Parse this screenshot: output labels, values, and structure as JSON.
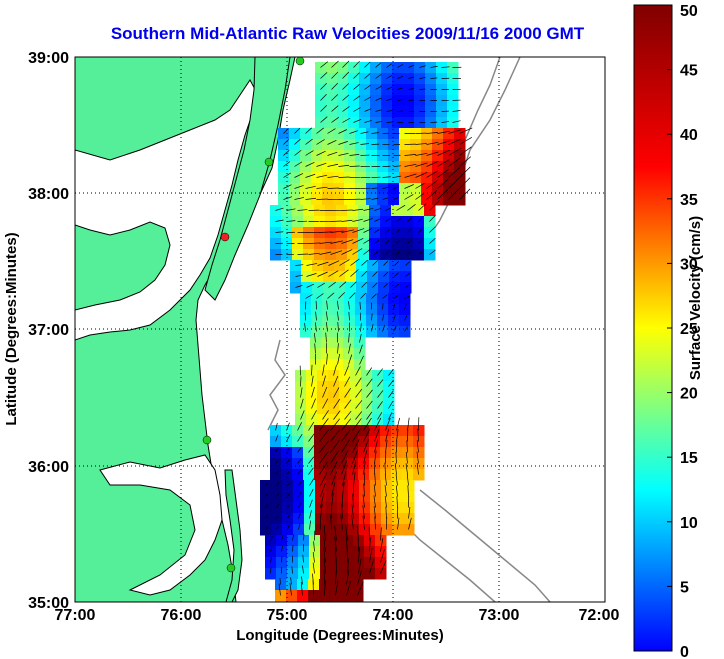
{
  "title": "Southern Mid-Atlantic Raw Velocities 2009/11/16 2000 GMT",
  "xlabel": "Longitude (Degrees:Minutes)",
  "ylabel": "Latitude (Degrees:Minutes)",
  "x_ticks": [
    "77:00",
    "76:00",
    "75:00",
    "74:00",
    "73:00",
    "72:00"
  ],
  "y_ticks": [
    "39:00",
    "38:00",
    "37:00",
    "36:00",
    "35:00"
  ],
  "colorbar": {
    "label": "Surface Velocity (cm/s)",
    "ticks": [
      "0",
      "5",
      "10",
      "15",
      "20",
      "25",
      "30",
      "35",
      "40",
      "45",
      "50"
    ],
    "range": [
      0,
      50
    ],
    "colormap": "jet"
  },
  "colors": {
    "land": "#55ee99",
    "coast": "#000000",
    "bathymetry": "#888888",
    "title": "#0000ee",
    "station": "#22cc22",
    "station_alert": "#ee2222"
  },
  "map": {
    "lon_range": [
      -77,
      -72
    ],
    "lat_range": [
      35,
      39
    ],
    "grid": "dotted"
  }
}
